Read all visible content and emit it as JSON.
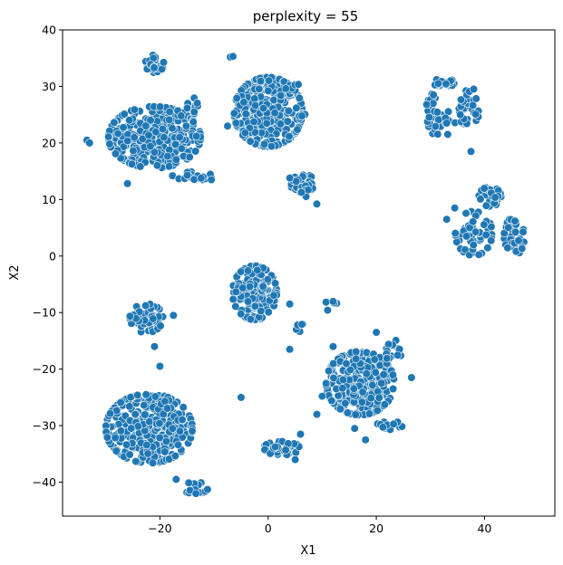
{
  "chart_data": {
    "type": "scatter",
    "title": "perplexity = 55",
    "xlabel": "X1",
    "ylabel": "X2",
    "xlim": [
      -38,
      53
    ],
    "ylim": [
      -46,
      40
    ],
    "xticks": [
      -20,
      0,
      20,
      40
    ],
    "yticks": [
      -40,
      -30,
      -20,
      -10,
      0,
      10,
      20,
      30,
      40
    ],
    "grid": false,
    "legend": "none",
    "point_color": "#1f77b4",
    "clusters": [
      {
        "cx": -21,
        "cy": 21,
        "sx": 5.0,
        "sy": 3.2,
        "n": 340
      },
      {
        "cx": 0,
        "cy": 25.5,
        "sx": 3.7,
        "sy": 3.6,
        "n": 300
      },
      {
        "cx": -22,
        "cy": -30.5,
        "sx": 4.7,
        "sy": 3.6,
        "n": 360
      },
      {
        "cx": 17,
        "cy": -22.5,
        "sx": 3.7,
        "sy": 3.3,
        "n": 280
      },
      {
        "cx": -2.5,
        "cy": -6.5,
        "sx": 2.4,
        "sy": 2.8,
        "n": 160
      },
      {
        "cx": -22.5,
        "cy": -11,
        "sx": 1.8,
        "sy": 1.5,
        "n": 60
      },
      {
        "cx": -21,
        "cy": 34,
        "sx": 1.0,
        "sy": 0.9,
        "n": 28
      },
      {
        "cx": 32.5,
        "cy": 30.5,
        "sx": 1.1,
        "sy": 0.6,
        "n": 18
      },
      {
        "cx": 30,
        "cy": 27,
        "sx": 0.7,
        "sy": 1.0,
        "n": 10
      },
      {
        "cx": 32,
        "cy": 23.5,
        "sx": 1.5,
        "sy": 1.4,
        "n": 30
      },
      {
        "cx": 37,
        "cy": 26.5,
        "sx": 1.3,
        "sy": 2.0,
        "n": 30
      },
      {
        "cx": 6.5,
        "cy": 12.5,
        "sx": 1.3,
        "sy": 1.2,
        "n": 30
      },
      {
        "cx": 41,
        "cy": 10.5,
        "sx": 1.2,
        "sy": 1.0,
        "n": 28
      },
      {
        "cx": 38,
        "cy": 4,
        "sx": 2.0,
        "sy": 2.3,
        "n": 55
      },
      {
        "cx": 45.5,
        "cy": 3.5,
        "sx": 1.1,
        "sy": 2.0,
        "n": 38
      },
      {
        "cx": 2.5,
        "cy": -34,
        "sx": 2.0,
        "sy": 0.7,
        "n": 35
      },
      {
        "cx": -13.5,
        "cy": -41,
        "sx": 1.4,
        "sy": 0.6,
        "n": 14
      },
      {
        "cx": -14,
        "cy": 14,
        "sx": 2.2,
        "sy": 0.6,
        "n": 20
      },
      {
        "cx": 22.5,
        "cy": -30,
        "sx": 1.4,
        "sy": 0.6,
        "n": 14
      },
      {
        "cx": 4.5,
        "cy": 30,
        "sx": 1.0,
        "sy": 0.6,
        "n": 8
      },
      {
        "cx": 6.5,
        "cy": 24.5,
        "sx": 0.6,
        "sy": 0.5,
        "n": 4
      },
      {
        "cx": -14.5,
        "cy": 26,
        "sx": 0.9,
        "sy": 1.5,
        "n": 10
      },
      {
        "cx": 23.5,
        "cy": -17,
        "sx": 1.0,
        "sy": 1.5,
        "n": 14
      },
      {
        "cx": 6,
        "cy": -12.5,
        "sx": 0.6,
        "sy": 0.5,
        "n": 6
      },
      {
        "cx": 11.5,
        "cy": -8.5,
        "sx": 0.7,
        "sy": 0.7,
        "n": 6
      }
    ],
    "outliers": [
      [
        -33.5,
        20.5
      ],
      [
        -33,
        20
      ],
      [
        -26,
        12.8
      ],
      [
        -7,
        35.2
      ],
      [
        -6.5,
        35.3
      ],
      [
        4,
        13.8
      ],
      [
        9,
        9.2
      ],
      [
        37.5,
        18.5
      ],
      [
        34.5,
        8.5
      ],
      [
        33,
        6.5
      ],
      [
        4,
        -8.5
      ],
      [
        4,
        -16.5
      ],
      [
        -21,
        -16
      ],
      [
        -20,
        -19.5
      ],
      [
        -17.5,
        -10.5
      ],
      [
        -5,
        -25
      ],
      [
        9,
        -28
      ],
      [
        18,
        -32.5
      ],
      [
        16,
        -30.5
      ],
      [
        10,
        -24.8
      ],
      [
        12,
        -16
      ],
      [
        20,
        -13.5
      ],
      [
        26.5,
        -21.5
      ],
      [
        -17,
        -39.5
      ],
      [
        6,
        -31.5
      ],
      [
        5,
        -36
      ],
      [
        -2,
        -2.5
      ],
      [
        -10.5,
        13.5
      ],
      [
        -16,
        19
      ],
      [
        -7.5,
        23
      ]
    ]
  }
}
